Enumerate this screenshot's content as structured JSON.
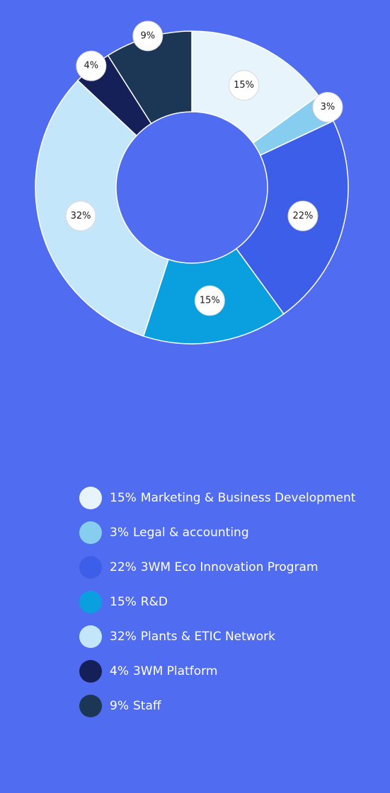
{
  "chart_data": {
    "type": "pie",
    "categories": [
      "Marketing & Business Development",
      "Legal & accounting",
      "3WM Eco Innovation Program",
      "R&D",
      "Plants & ETIC Network",
      "3WM Platform",
      "Staff"
    ],
    "values": [
      15,
      3,
      22,
      15,
      32,
      4,
      9
    ],
    "value_labels": [
      "15%",
      "3%",
      "22%",
      "15%",
      "32%",
      "4%",
      "9%"
    ],
    "colors": [
      "#e8f4fc",
      "#87cdf0",
      "#3d5ee8",
      "#0aa0e0",
      "#c4e6fa",
      "#162058",
      "#1c3656"
    ]
  }
}
